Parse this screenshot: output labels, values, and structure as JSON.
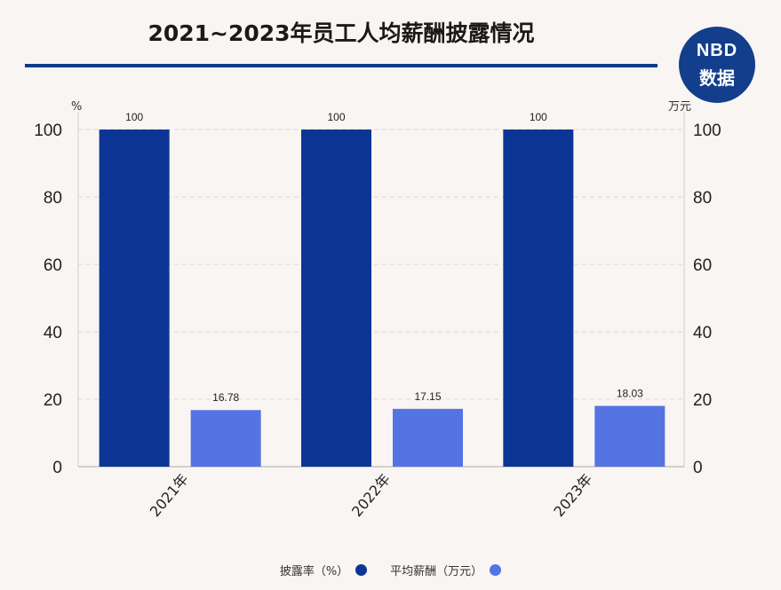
{
  "logo": {
    "top": "NBD",
    "bottom": "数据"
  },
  "chart_data": {
    "type": "bar",
    "title": "2021~2023年员工人均薪酬披露情况",
    "categories": [
      "2021年",
      "2022年",
      "2023年"
    ],
    "series": [
      {
        "name": "披露率（%）",
        "values": [
          100,
          100,
          100
        ],
        "color": "#0d3596",
        "axis": "left"
      },
      {
        "name": "平均薪酬（万元）",
        "values": [
          16.78,
          17.15,
          18.03
        ],
        "color": "#5474e4",
        "axis": "right"
      }
    ],
    "data_labels": [
      [
        "100",
        "100",
        "100"
      ],
      [
        "16.78",
        "17.15",
        "18.03"
      ]
    ],
    "y_left": {
      "unit": "%",
      "ylim": [
        0,
        100
      ],
      "ticks": [
        0,
        20,
        40,
        60,
        80,
        100
      ]
    },
    "y_right": {
      "unit": "万元",
      "ylim": [
        0,
        100
      ],
      "ticks": [
        0,
        20,
        40,
        60,
        80,
        100
      ]
    },
    "grid": true,
    "legend_position": "bottom"
  }
}
